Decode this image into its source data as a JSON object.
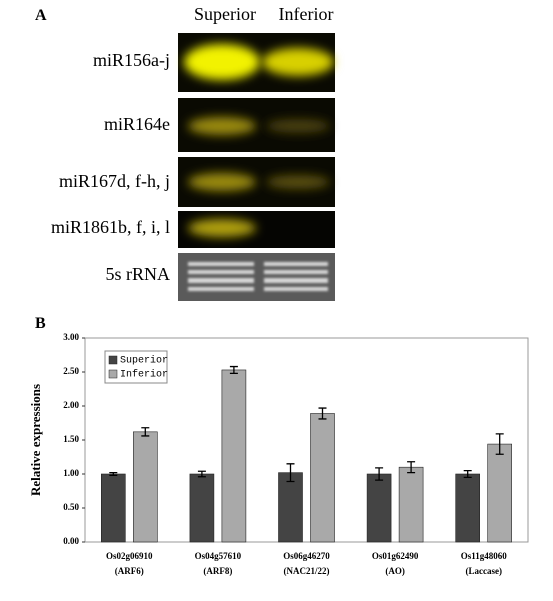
{
  "panel_a": {
    "label": "A",
    "columns": [
      "Superior",
      "Inferior"
    ],
    "rows": [
      "miR156a-j",
      "miR164e",
      "miR167d, f-h, j",
      "miR1861b, f, i, l",
      "5s rRNA"
    ]
  },
  "chart_data": {
    "type": "bar",
    "panel_label": "B",
    "ylabel": "Relative expressions",
    "categories": [
      "Os02g06910",
      "Os04g57610",
      "Os06g46270",
      "Os01g62490",
      "Os11g48060"
    ],
    "category_notes": [
      "(ARF6)",
      "(ARF8)",
      "(NAC21/22)",
      "(AO)",
      "(Laccase)"
    ],
    "series": [
      {
        "name": "Superior",
        "color": "#444444",
        "values": [
          1.0,
          1.0,
          1.02,
          1.0,
          1.0
        ],
        "errors": [
          0.02,
          0.04,
          0.13,
          0.09,
          0.05
        ]
      },
      {
        "name": "Inferior",
        "color": "#a9a9a9",
        "values": [
          1.62,
          2.53,
          1.89,
          1.1,
          1.44
        ],
        "errors": [
          0.06,
          0.05,
          0.08,
          0.08,
          0.15
        ]
      }
    ],
    "ylim": [
      0,
      3
    ],
    "yticks": [
      {
        "value": 0,
        "label": "0.00"
      },
      {
        "value": 0.5,
        "label": "0.50"
      },
      {
        "value": 1,
        "label": "1.00"
      },
      {
        "value": 1.5,
        "label": "1.50"
      },
      {
        "value": 2,
        "label": "2.00"
      },
      {
        "value": 2.5,
        "label": "2.50"
      },
      {
        "value": 3,
        "label": "3.00"
      }
    ],
    "legend": "top-left"
  }
}
